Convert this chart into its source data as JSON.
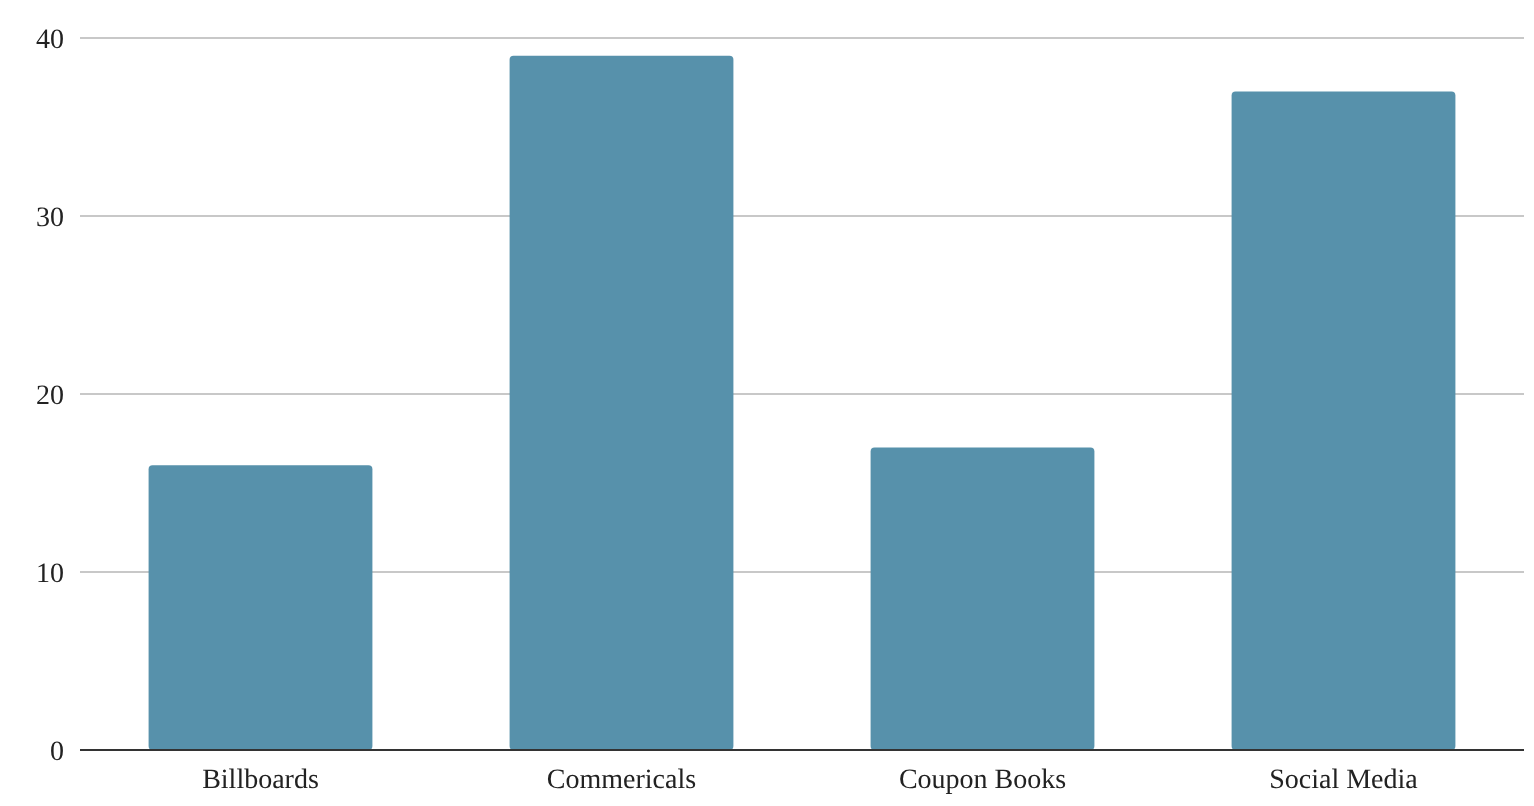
{
  "chart_data": {
    "type": "bar",
    "categories": [
      "Billboards",
      "Commericals",
      "Coupon Books",
      "Social Media"
    ],
    "values": [
      16,
      39,
      17,
      37
    ],
    "color": "#5791ab",
    "ylim": [
      0,
      40
    ],
    "yticks": [
      0,
      10,
      20,
      30,
      40
    ],
    "grid": "y"
  }
}
